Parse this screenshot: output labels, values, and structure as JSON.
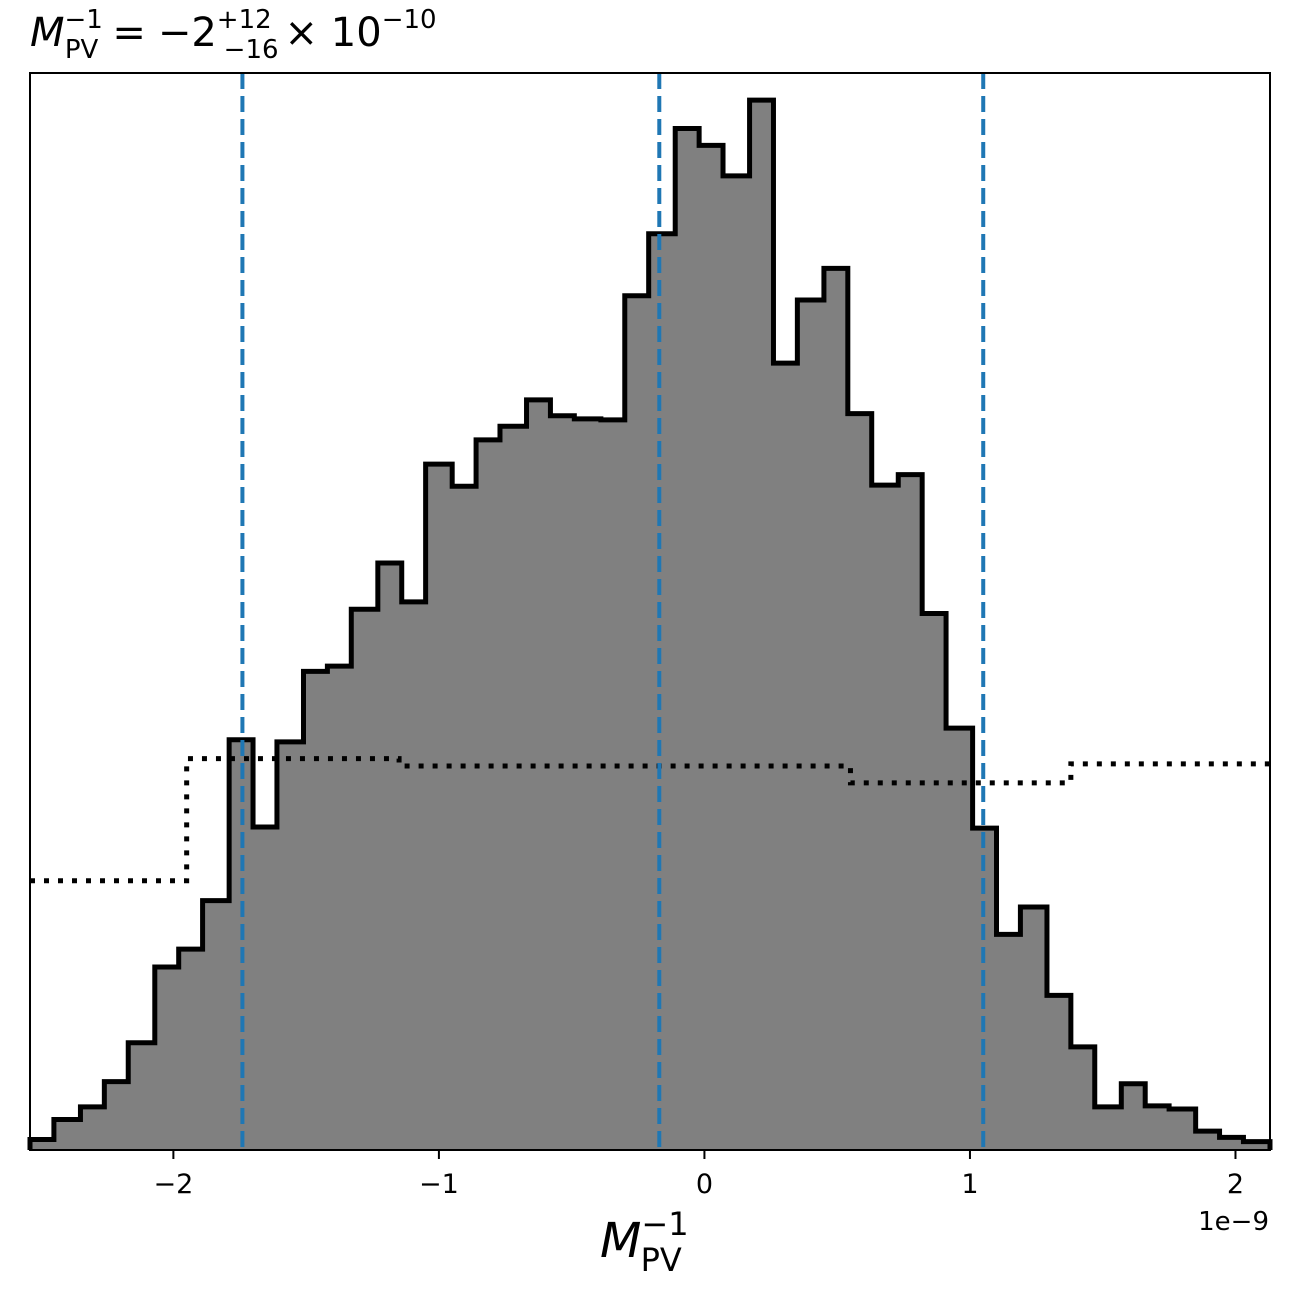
{
  "chart_data": {
    "type": "histogram",
    "title": {
      "var": "M",
      "var_sub": "PV",
      "var_sup": "−1",
      "equals": "=",
      "value": "−2",
      "err_plus": "+12",
      "err_minus": "−16",
      "times": "× 10",
      "exp": "−10"
    },
    "xlabel": {
      "var": "M",
      "sub": "PV",
      "sup": "−1"
    },
    "offset_label": "1e−9",
    "xlim": [
      -2.54,
      2.13
    ],
    "ylim": [
      0,
      1.0
    ],
    "x_scale": 1e-09,
    "xticks": [
      -2,
      -1,
      0,
      1,
      2
    ],
    "xtick_labels": [
      "−2",
      "−1",
      "0",
      "1",
      "2"
    ],
    "grid": false,
    "histogram": {
      "fill": "#808080",
      "edge": "#000000",
      "bins": [
        {
          "x0": -2.54,
          "x1": -2.45,
          "h": 0.01
        },
        {
          "x0": -2.45,
          "x1": -2.35,
          "h": 0.029
        },
        {
          "x0": -2.35,
          "x1": -2.26,
          "h": 0.041
        },
        {
          "x0": -2.26,
          "x1": -2.17,
          "h": 0.065
        },
        {
          "x0": -2.17,
          "x1": -2.07,
          "h": 0.102
        },
        {
          "x0": -2.07,
          "x1": -1.98,
          "h": 0.174
        },
        {
          "x0": -1.98,
          "x1": -1.89,
          "h": 0.191
        },
        {
          "x0": -1.89,
          "x1": -1.79,
          "h": 0.237
        },
        {
          "x0": -1.79,
          "x1": -1.7,
          "h": 0.39
        },
        {
          "x0": -1.7,
          "x1": -1.61,
          "h": 0.307
        },
        {
          "x0": -1.61,
          "x1": -1.51,
          "h": 0.388
        },
        {
          "x0": -1.51,
          "x1": -1.42,
          "h": 0.455
        },
        {
          "x0": -1.42,
          "x1": -1.33,
          "h": 0.46
        },
        {
          "x0": -1.33,
          "x1": -1.23,
          "h": 0.514
        },
        {
          "x0": -1.23,
          "x1": -1.14,
          "h": 0.558
        },
        {
          "x0": -1.14,
          "x1": -1.05,
          "h": 0.521
        },
        {
          "x0": -1.05,
          "x1": -0.95,
          "h": 0.652
        },
        {
          "x0": -0.95,
          "x1": -0.86,
          "h": 0.631
        },
        {
          "x0": -0.86,
          "x1": -0.77,
          "h": 0.675
        },
        {
          "x0": -0.77,
          "x1": -0.67,
          "h": 0.688
        },
        {
          "x0": -0.67,
          "x1": -0.58,
          "h": 0.713
        },
        {
          "x0": -0.58,
          "x1": -0.49,
          "h": 0.698
        },
        {
          "x0": -0.49,
          "x1": -0.39,
          "h": 0.695
        },
        {
          "x0": -0.39,
          "x1": -0.3,
          "h": 0.694
        },
        {
          "x0": -0.3,
          "x1": -0.21,
          "h": 0.812
        },
        {
          "x0": -0.21,
          "x1": -0.11,
          "h": 0.871
        },
        {
          "x0": -0.11,
          "x1": -0.02,
          "h": 0.971
        },
        {
          "x0": -0.02,
          "x1": 0.07,
          "h": 0.955
        },
        {
          "x0": 0.07,
          "x1": 0.17,
          "h": 0.926
        },
        {
          "x0": 0.17,
          "x1": 0.26,
          "h": 0.998
        },
        {
          "x0": 0.26,
          "x1": 0.35,
          "h": 0.748
        },
        {
          "x0": 0.35,
          "x1": 0.45,
          "h": 0.808
        },
        {
          "x0": 0.45,
          "x1": 0.54,
          "h": 0.838
        },
        {
          "x0": 0.54,
          "x1": 0.63,
          "h": 0.7
        },
        {
          "x0": 0.63,
          "x1": 0.73,
          "h": 0.632
        },
        {
          "x0": 0.73,
          "x1": 0.82,
          "h": 0.642
        },
        {
          "x0": 0.82,
          "x1": 0.91,
          "h": 0.51
        },
        {
          "x0": 0.91,
          "x1": 1.01,
          "h": 0.401
        },
        {
          "x0": 1.01,
          "x1": 1.1,
          "h": 0.306
        },
        {
          "x0": 1.1,
          "x1": 1.19,
          "h": 0.205
        },
        {
          "x0": 1.19,
          "x1": 1.29,
          "h": 0.231
        },
        {
          "x0": 1.29,
          "x1": 1.38,
          "h": 0.147
        },
        {
          "x0": 1.38,
          "x1": 1.47,
          "h": 0.098
        },
        {
          "x0": 1.47,
          "x1": 1.57,
          "h": 0.041
        },
        {
          "x0": 1.57,
          "x1": 1.66,
          "h": 0.063
        },
        {
          "x0": 1.66,
          "x1": 1.75,
          "h": 0.042
        },
        {
          "x0": 1.75,
          "x1": 1.85,
          "h": 0.039
        },
        {
          "x0": 1.85,
          "x1": 1.94,
          "h": 0.018
        },
        {
          "x0": 1.94,
          "x1": 2.03,
          "h": 0.012
        },
        {
          "x0": 2.03,
          "x1": 2.13,
          "h": 0.008
        }
      ]
    },
    "reference_step": {
      "style": "dotted",
      "color": "#000000",
      "points": [
        [
          -2.54,
          0.256
        ],
        [
          -1.95,
          0.256
        ],
        [
          -1.95,
          0.372
        ],
        [
          -1.15,
          0.372
        ],
        [
          -1.15,
          0.365
        ],
        [
          0.55,
          0.365
        ],
        [
          0.55,
          0.349
        ],
        [
          1.38,
          0.349
        ],
        [
          1.38,
          0.367
        ],
        [
          2.13,
          0.367
        ]
      ]
    },
    "quantile_lines": {
      "color": "#1f77b4",
      "style": "dashed",
      "x": [
        -1.74,
        -0.17,
        1.05
      ]
    }
  }
}
